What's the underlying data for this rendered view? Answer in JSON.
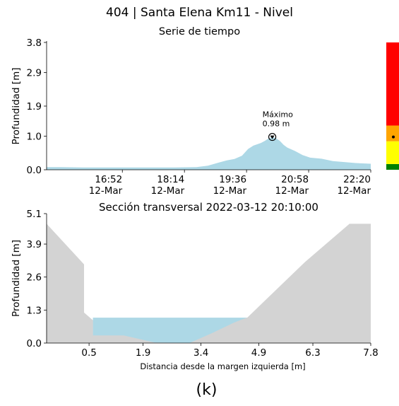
{
  "figure": {
    "title": "404 | Santa Elena Km11 - Nivel",
    "caption": "(k)"
  },
  "chart_data": [
    {
      "type": "area",
      "title": "Serie de tiempo",
      "xlabel": "",
      "ylabel": "Profundidad [m]",
      "y_ticks": [
        "0.0",
        "1.0",
        "1.9",
        "2.9",
        "3.8"
      ],
      "ylim": [
        0,
        3.8
      ],
      "x_tick_labels": [
        "16:52\n12-Mar",
        "18:14\n12-Mar",
        "19:36\n12-Mar",
        "20:58\n12-Mar",
        "22:20\n12-Mar"
      ],
      "x_ticks": [
        "16:52",
        "18:14",
        "19:36",
        "20:58",
        "22:20"
      ],
      "xlim": [
        "15:12",
        "22:20"
      ],
      "x": [
        "15:12",
        "15:30",
        "16:00",
        "16:30",
        "17:00",
        "17:30",
        "18:00",
        "18:30",
        "18:45",
        "19:00",
        "19:10",
        "19:20",
        "19:30",
        "19:38",
        "19:45",
        "19:50",
        "19:55",
        "20:00",
        "20:05",
        "20:10",
        "20:15",
        "20:20",
        "20:25",
        "20:30",
        "20:40",
        "20:50",
        "21:00",
        "21:15",
        "21:30",
        "22:00",
        "22:20"
      ],
      "series": [
        {
          "values": [
            0.08,
            0.08,
            0.07,
            0.07,
            0.07,
            0.07,
            0.07,
            0.08,
            0.12,
            0.22,
            0.28,
            0.32,
            0.42,
            0.62,
            0.72,
            0.76,
            0.8,
            0.86,
            0.93,
            0.98,
            0.94,
            0.86,
            0.74,
            0.66,
            0.56,
            0.44,
            0.36,
            0.33,
            0.26,
            0.2,
            0.18
          ],
          "color": "#add8e6"
        }
      ],
      "annotation": {
        "label": "Máximo",
        "value_text": "0.98 m",
        "x": "20:10",
        "y": 0.98
      },
      "threshold_bar": {
        "segments": [
          {
            "from": 0.0,
            "to": 0.17,
            "color": "#008000"
          },
          {
            "from": 0.17,
            "to": 0.85,
            "color": "#ffff00"
          },
          {
            "from": 0.85,
            "to": 1.32,
            "color": "#ffa500"
          },
          {
            "from": 1.32,
            "to": 3.8,
            "color": "#ff0000"
          }
        ],
        "current_value": 0.98
      },
      "grid": false
    },
    {
      "type": "area",
      "title": "Sección transversal 2022-03-12 20:10:00",
      "xlabel": "Distancia desde la margen izquierda [m]",
      "ylabel": "Profundidad [m]",
      "x_ticks": [
        "0.5",
        "1.9",
        "3.4",
        "4.9",
        "6.3",
        "7.8"
      ],
      "y_ticks": [
        "0.0",
        "1.3",
        "2.6",
        "3.9",
        "5.1"
      ],
      "xlim": [
        -0.6,
        7.8
      ],
      "ylim": [
        0,
        5.1
      ],
      "bed_profile": {
        "x": [
          -0.6,
          0.37,
          0.37,
          0.6,
          0.6,
          1.4,
          2.2,
          3.1,
          3.7,
          4.25,
          4.5,
          4.6,
          6.1,
          7.25,
          7.8,
          7.8,
          -0.6
        ],
        "y": [
          4.7,
          3.1,
          1.2,
          0.9,
          0.3,
          0.3,
          0.02,
          0.0,
          0.4,
          0.8,
          0.95,
          1.0,
          3.2,
          4.7,
          4.7,
          0.0,
          0.0
        ],
        "color": "#d3d3d3"
      },
      "water_level": 1.0,
      "water_color": "#add8e6",
      "grid": false
    }
  ]
}
